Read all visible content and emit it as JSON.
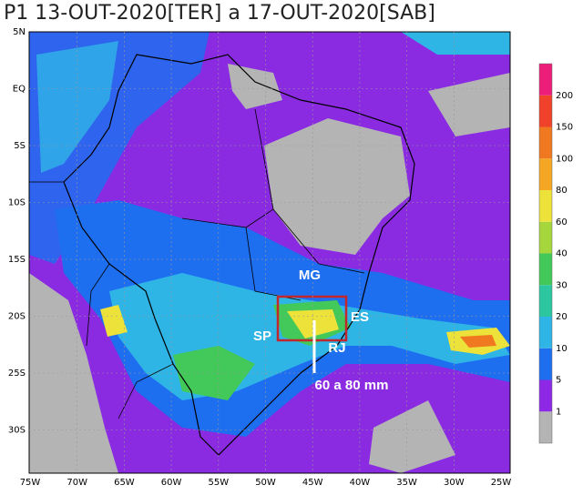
{
  "title": "P1 13-OUT-2020[TER] a 17-OUT-2020[SAB]",
  "map": {
    "lat_labels": [
      "5N",
      "EQ",
      "5S",
      "10S",
      "15S",
      "20S",
      "25S",
      "30S"
    ],
    "lon_labels": [
      "75W",
      "70W",
      "65W",
      "60W",
      "55W",
      "50W",
      "45W",
      "40W",
      "35W",
      "30W",
      "25W"
    ],
    "annotations": [
      "MG",
      "ES",
      "SP",
      "RJ",
      "60 a 80 mm"
    ]
  },
  "colorbar": {
    "levels": [
      1,
      5,
      10,
      20,
      30,
      40,
      60,
      80,
      100,
      150,
      200
    ],
    "colors": [
      "#b4b4b4",
      "#8c28e6",
      "#1e6ef0",
      "#2fb4e6",
      "#2cc6a0",
      "#43c95a",
      "#a5d63c",
      "#ece23a",
      "#f5a623",
      "#f07820",
      "#f0412b",
      "#ec1e79"
    ]
  }
}
